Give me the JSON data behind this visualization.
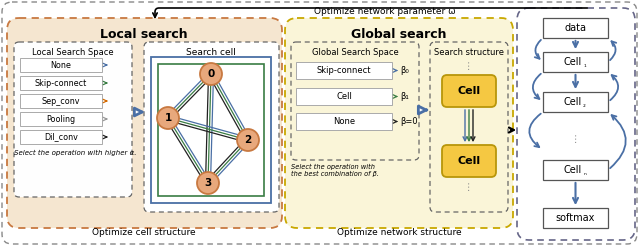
{
  "title_top": "Optimize network parameter ω",
  "local_search_title": "Local search",
  "global_search_title": "Global search",
  "local_bg_color": "#f5e6d0",
  "global_bg_color": "#faf5d8",
  "local_border_color": "#c87941",
  "global_border_color": "#c9a800",
  "dashed_color": "#555555",
  "node_color": "#e8a87c",
  "node_border": "#c87941",
  "cell_yellow": "#f5c842",
  "cell_yellow_border": "#b8960a",
  "arrow_blue": "#4a6fa5",
  "arrow_green": "#3a7d44",
  "arrow_black": "#222222",
  "arrow_gray": "#999999",
  "arrow_orange": "#d46a00",
  "right_border": "#4a6fa5",
  "local_space_items": [
    "None",
    "Skip-connect",
    "Sep_conv",
    "Pooling",
    "Dil_conv"
  ],
  "local_space_arrow_colors": [
    "#4a6fa5",
    "#3a7d44",
    "#d46a00",
    "#999999",
    "#222222"
  ],
  "global_space_items": [
    "Skip-connect",
    "Cell",
    "None"
  ],
  "global_space_betas": [
    "β₀",
    "β₁",
    "β=0"
  ],
  "global_space_arrow_colors": [
    "#4a6fa5",
    "#3a7d44",
    "#222222"
  ],
  "right_boxes": [
    "data",
    "Cell₁",
    "Cell₂",
    "Cellₙ",
    "softmax"
  ],
  "search_cell_label": "Search cell",
  "local_search_space_label": "Local Search Space",
  "global_search_space_label": "Global Search Space",
  "search_structure_label": "Search structure",
  "optimize_cell_label": "Optimize cell structure",
  "optimize_network_label": "Optimize network structure",
  "select_alpha_label": "Select the operation with higher α.",
  "select_beta_label": "Select the operation with\nthe best combination of β."
}
